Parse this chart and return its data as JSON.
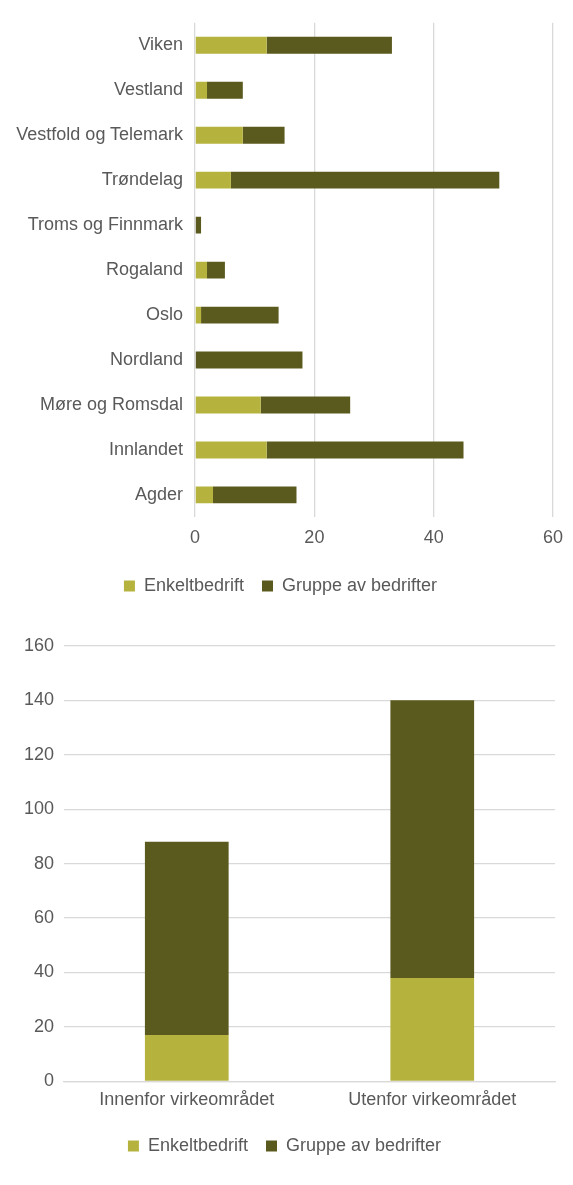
{
  "chart_data": [
    {
      "type": "bar",
      "orientation": "horizontal",
      "stacked": true,
      "categories": [
        "Viken",
        "Vestland",
        "Vestfold og Telemark",
        "Trøndelag",
        "Troms og Finnmark",
        "Rogaland",
        "Oslo",
        "Nordland",
        "Møre og Romsdal",
        "Innlandet",
        "Agder"
      ],
      "series": [
        {
          "name": "Enkeltbedrift",
          "color": "#b5b33e",
          "values": [
            12,
            2,
            8,
            6,
            0,
            2,
            1,
            0,
            11,
            12,
            3
          ]
        },
        {
          "name": "Gruppe av bedrifter",
          "color": "#5b5a1e",
          "values": [
            21,
            6,
            7,
            45,
            1,
            3,
            13,
            18,
            15,
            33,
            14
          ]
        }
      ],
      "xlim": [
        0,
        60
      ],
      "xticks": [
        0,
        20,
        40,
        60
      ],
      "grid": "x",
      "legend": "bottom"
    },
    {
      "type": "bar",
      "stacked": true,
      "categories": [
        "Innenfor virkeområdet",
        "Utenfor virkeområdet"
      ],
      "series": [
        {
          "name": "Enkeltbedrift",
          "color": "#b5b33e",
          "values": [
            17,
            38
          ]
        },
        {
          "name": "Gruppe av bedrifter",
          "color": "#5b5a1e",
          "values": [
            71,
            102
          ]
        }
      ],
      "ylim": [
        0,
        160
      ],
      "yticks": [
        0,
        20,
        40,
        60,
        80,
        100,
        120,
        140,
        160
      ],
      "grid": "y",
      "legend": "bottom"
    }
  ]
}
